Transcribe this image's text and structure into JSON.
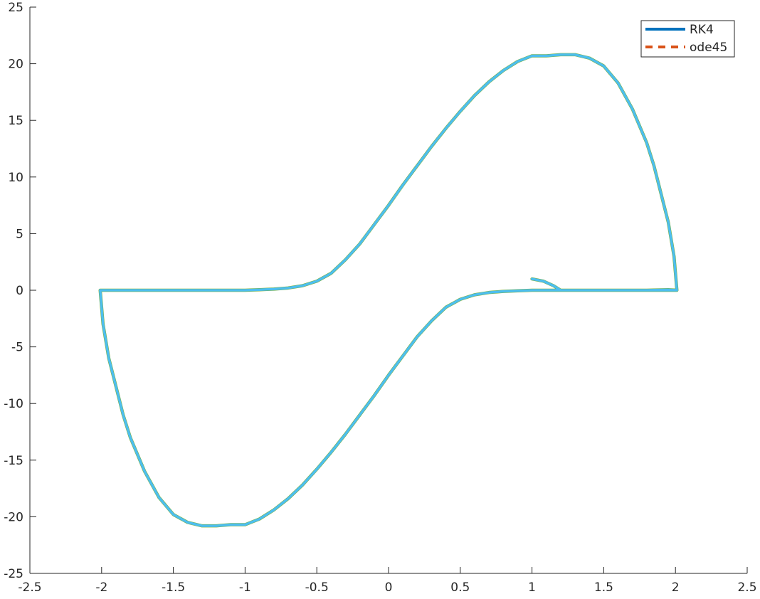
{
  "chart_data": {
    "type": "line",
    "title": "",
    "xlabel": "",
    "ylabel": "",
    "xlim": [
      -2.5,
      2.5
    ],
    "ylim": [
      -25,
      25
    ],
    "x_ticks": [
      -2.5,
      -2,
      -1.5,
      -1,
      -0.5,
      0,
      0.5,
      1,
      1.5,
      2,
      2.5
    ],
    "y_ticks": [
      -25,
      -20,
      -15,
      -10,
      -5,
      0,
      5,
      10,
      15,
      20,
      25
    ],
    "x_tick_labels": [
      "-2.5",
      "-2",
      "-1.5",
      "-1",
      "-0.5",
      "0",
      "0.5",
      "1",
      "1.5",
      "2",
      "2.5"
    ],
    "y_tick_labels": [
      "-25",
      "-20",
      "-15",
      "-10",
      "-5",
      "0",
      "5",
      "10",
      "15",
      "20",
      "25"
    ],
    "grid": false,
    "box": false,
    "legend": {
      "position": "top-right",
      "entries": [
        {
          "name": "RK4",
          "style": "solid",
          "color": "#0072BD"
        },
        {
          "name": "ode45",
          "style": "dashed",
          "color": "#D95319"
        }
      ]
    },
    "visible_trace_color": "#4DBEEE",
    "visible_trace_secondary_color": "#77AC30",
    "series": [
      {
        "name": "RK4",
        "color": "#0072BD",
        "style": "solid",
        "x": [
          1.0,
          1.08,
          1.15,
          1.2,
          1.4,
          1.6,
          1.8,
          1.95,
          2.01,
          1.99,
          1.95,
          1.9,
          1.85,
          1.8,
          1.7,
          1.6,
          1.5,
          1.4,
          1.3,
          1.2,
          1.1,
          1.0,
          0.9,
          0.8,
          0.7,
          0.6,
          0.5,
          0.4,
          0.3,
          0.2,
          0.1,
          0.0,
          -0.1,
          -0.2,
          -0.3,
          -0.4,
          -0.5,
          -0.6,
          -0.7,
          -0.8,
          -0.9,
          -1.0,
          -1.2,
          -1.4,
          -1.6,
          -1.8,
          -1.95,
          -2.01,
          -1.99,
          -1.95,
          -1.9,
          -1.85,
          -1.8,
          -1.7,
          -1.6,
          -1.5,
          -1.4,
          -1.3,
          -1.2,
          -1.1,
          -1.0,
          -0.9,
          -0.8,
          -0.7,
          -0.6,
          -0.5,
          -0.4,
          -0.3,
          -0.2,
          -0.1,
          0.0,
          0.1,
          0.2,
          0.3,
          0.4,
          0.5,
          0.6,
          0.7,
          0.8,
          0.9,
          1.0,
          1.2,
          1.4,
          1.6,
          1.8,
          1.95,
          2.01
        ],
        "y": [
          1.0,
          0.8,
          0.4,
          0.0,
          0.0,
          0.0,
          0.0,
          0.05,
          0.0,
          3.0,
          6.0,
          8.5,
          11.0,
          13.0,
          16.0,
          18.3,
          19.8,
          20.5,
          20.8,
          20.8,
          20.7,
          20.7,
          20.2,
          19.4,
          18.4,
          17.2,
          15.8,
          14.3,
          12.7,
          11.0,
          9.3,
          7.5,
          5.8,
          4.1,
          2.7,
          1.5,
          0.8,
          0.4,
          0.2,
          0.1,
          0.05,
          0.0,
          0.0,
          0.0,
          0.0,
          0.0,
          0.0,
          0.0,
          -3.0,
          -6.0,
          -8.5,
          -11.0,
          -13.0,
          -16.0,
          -18.3,
          -19.8,
          -20.5,
          -20.8,
          -20.8,
          -20.7,
          -20.7,
          -20.2,
          -19.4,
          -18.4,
          -17.2,
          -15.8,
          -14.3,
          -12.7,
          -11.0,
          -9.3,
          -7.5,
          -5.8,
          -4.1,
          -2.7,
          -1.5,
          -0.8,
          -0.4,
          -0.2,
          -0.1,
          -0.05,
          0.0,
          0.0,
          0.0,
          0.0,
          0.0,
          0.0,
          0.0
        ]
      },
      {
        "name": "ode45",
        "color": "#D95319",
        "style": "dashed",
        "x": [
          1.0,
          1.08,
          1.15,
          1.2,
          1.4,
          1.6,
          1.8,
          1.95,
          2.01,
          1.99,
          1.95,
          1.9,
          1.85,
          1.8,
          1.7,
          1.6,
          1.5,
          1.4,
          1.3,
          1.2,
          1.1,
          1.0,
          0.9,
          0.8,
          0.7,
          0.6,
          0.5,
          0.4,
          0.3,
          0.2,
          0.1,
          0.0,
          -0.1,
          -0.2,
          -0.3,
          -0.4,
          -0.5,
          -0.6,
          -0.7,
          -0.8,
          -0.9,
          -1.0,
          -1.2,
          -1.4,
          -1.6,
          -1.8,
          -1.95,
          -2.01,
          -1.99,
          -1.95,
          -1.9,
          -1.85,
          -1.8,
          -1.7,
          -1.6,
          -1.5,
          -1.4,
          -1.3,
          -1.2,
          -1.1,
          -1.0,
          -0.9,
          -0.8,
          -0.7,
          -0.6,
          -0.5,
          -0.4,
          -0.3,
          -0.2,
          -0.1,
          0.0,
          0.1,
          0.2,
          0.3,
          0.4,
          0.5,
          0.6,
          0.7,
          0.8,
          0.9,
          1.0,
          1.2,
          1.4,
          1.6,
          1.8,
          1.95,
          2.01
        ],
        "y": [
          1.0,
          0.8,
          0.4,
          0.0,
          0.0,
          0.0,
          0.0,
          0.05,
          0.0,
          3.0,
          6.0,
          8.5,
          11.0,
          13.0,
          16.0,
          18.3,
          19.8,
          20.5,
          20.8,
          20.8,
          20.7,
          20.7,
          20.2,
          19.4,
          18.4,
          17.2,
          15.8,
          14.3,
          12.7,
          11.0,
          9.3,
          7.5,
          5.8,
          4.1,
          2.7,
          1.5,
          0.8,
          0.4,
          0.2,
          0.1,
          0.05,
          0.0,
          0.0,
          0.0,
          0.0,
          0.0,
          0.0,
          0.0,
          -3.0,
          -6.0,
          -8.5,
          -11.0,
          -13.0,
          -16.0,
          -18.3,
          -19.8,
          -20.5,
          -20.8,
          -20.8,
          -20.7,
          -20.7,
          -20.2,
          -19.4,
          -18.4,
          -17.2,
          -15.8,
          -14.3,
          -12.7,
          -11.0,
          -9.3,
          -7.5,
          -5.8,
          -4.1,
          -2.7,
          -1.5,
          -0.8,
          -0.4,
          -0.2,
          -0.1,
          -0.05,
          0.0,
          0.0,
          0.0,
          0.0,
          0.0,
          0.0,
          0.0
        ]
      }
    ]
  }
}
